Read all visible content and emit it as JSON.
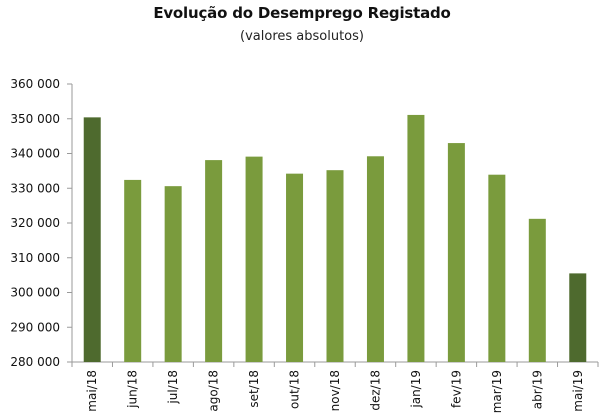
{
  "chart_data": {
    "type": "bar",
    "title": "Evolução do Desemprego Registado",
    "subtitle": "(valores absolutos)",
    "xlabel": "",
    "ylabel": "",
    "categories": [
      "mai/18",
      "jun/18",
      "jul/18",
      "ago/18",
      "set/18",
      "out/18",
      "nov/18",
      "dez/18",
      "jan/19",
      "fev/19",
      "mar/19",
      "abr/19",
      "mai/19"
    ],
    "values": [
      350400,
      332400,
      330600,
      338100,
      339100,
      334200,
      335200,
      339200,
      351100,
      343000,
      333900,
      321200,
      305500
    ],
    "ylim": [
      280000,
      360000
    ],
    "yticks": [
      "280 000",
      "290 000",
      "300 000",
      "310 000",
      "320 000",
      "330 000",
      "340 000",
      "350 000",
      "360 000"
    ],
    "grid": false,
    "colors": {
      "highlight": "#4e6a2e",
      "regular": "#7a9b3d",
      "axis": "#9a9a9a"
    },
    "highlight_indices": [
      0,
      12
    ]
  }
}
